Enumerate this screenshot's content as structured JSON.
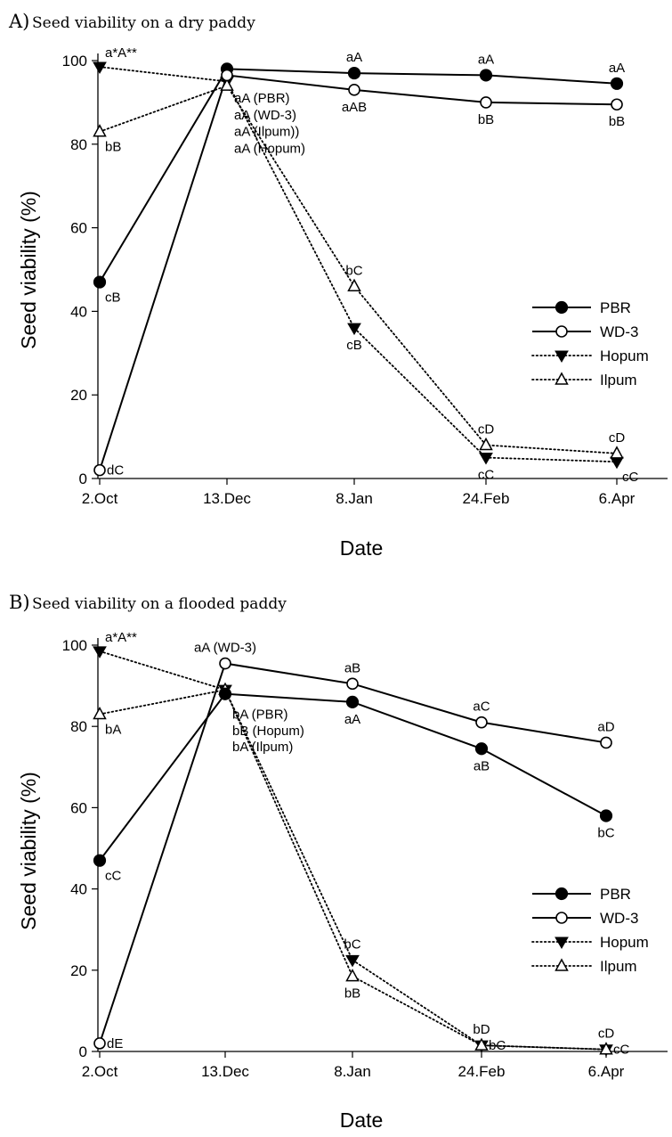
{
  "chart_data": [
    {
      "type": "line",
      "panel": "A)",
      "title": "Seed viability on a dry paddy",
      "xlabel": "Date",
      "ylabel": "Seed viability (%)",
      "categories": [
        "2.Oct",
        "13.Dec",
        "8.Jan",
        "24.Feb",
        "6.Apr"
      ],
      "ylim": [
        0,
        100
      ],
      "yticks": [
        0,
        20,
        40,
        60,
        80,
        100
      ],
      "legend_position": "center-right",
      "series": [
        {
          "name": "PBR",
          "marker": "filled-circle",
          "line": "solid",
          "values": [
            47,
            98,
            97,
            96.5,
            94.5
          ]
        },
        {
          "name": "WD-3",
          "marker": "open-circle",
          "line": "solid",
          "values": [
            2,
            96.5,
            93,
            90,
            89.5
          ]
        },
        {
          "name": "Hopum",
          "marker": "filled-triangle-down",
          "line": "dotted",
          "values": [
            98.5,
            95,
            36,
            5,
            4
          ]
        },
        {
          "name": "Ilpum",
          "marker": "open-triangle-up",
          "line": "dotted",
          "values": [
            83,
            94,
            46,
            8,
            6
          ]
        }
      ],
      "annotations": [
        {
          "text": "a*A**",
          "x": 0,
          "y": 98.5,
          "pos": "above-right"
        },
        {
          "text": "bB",
          "x": 0,
          "y": 83,
          "pos": "below-right"
        },
        {
          "text": "cB",
          "x": 0,
          "y": 47,
          "pos": "below-right"
        },
        {
          "text": "dC",
          "x": 0,
          "y": 2,
          "pos": "right"
        },
        {
          "text": "aA (PBR)",
          "x": 1,
          "y": 91,
          "pos": "right"
        },
        {
          "text": "aA (WD-3)",
          "x": 1,
          "y": 87,
          "pos": "right"
        },
        {
          "text": "aA (Ilpum))",
          "x": 1,
          "y": 83,
          "pos": "right"
        },
        {
          "text": "aA (Hopum)",
          "x": 1,
          "y": 79,
          "pos": "right"
        },
        {
          "text": "aA",
          "x": 2,
          "y": 97,
          "pos": "above"
        },
        {
          "text": "aAB",
          "x": 2,
          "y": 93,
          "pos": "below"
        },
        {
          "text": "bC",
          "x": 2,
          "y": 46,
          "pos": "above"
        },
        {
          "text": "cB",
          "x": 2,
          "y": 36,
          "pos": "below"
        },
        {
          "text": "aA",
          "x": 3,
          "y": 96.5,
          "pos": "above"
        },
        {
          "text": "bB",
          "x": 3,
          "y": 90,
          "pos": "below"
        },
        {
          "text": "cD",
          "x": 3,
          "y": 8,
          "pos": "above"
        },
        {
          "text": "cC",
          "x": 3,
          "y": 5,
          "pos": "below"
        },
        {
          "text": "aA",
          "x": 4,
          "y": 94.5,
          "pos": "above"
        },
        {
          "text": "bB",
          "x": 4,
          "y": 89.5,
          "pos": "below"
        },
        {
          "text": "cD",
          "x": 4,
          "y": 6,
          "pos": "above"
        },
        {
          "text": "cC",
          "x": 4,
          "y": 4,
          "pos": "below-right"
        }
      ]
    },
    {
      "type": "line",
      "panel": "B)",
      "title": "Seed viability on a flooded paddy",
      "xlabel": "Date",
      "ylabel": "Seed viability (%)",
      "categories": [
        "2.Oct",
        "13.Dec",
        "8.Jan",
        "24.Feb",
        "6.Apr"
      ],
      "ylim": [
        0,
        100
      ],
      "yticks": [
        0,
        20,
        40,
        60,
        80,
        100
      ],
      "legend_position": "lower-right",
      "series": [
        {
          "name": "PBR",
          "marker": "filled-circle",
          "line": "solid",
          "values": [
            47,
            88,
            86,
            74.5,
            58
          ]
        },
        {
          "name": "WD-3",
          "marker": "open-circle",
          "line": "solid",
          "values": [
            2,
            95.5,
            90.5,
            81,
            76
          ]
        },
        {
          "name": "Hopum",
          "marker": "filled-triangle-down",
          "line": "dotted",
          "values": [
            98.5,
            89,
            22.5,
            1.5,
            0.5
          ]
        },
        {
          "name": "Ilpum",
          "marker": "open-triangle-up",
          "line": "dotted",
          "values": [
            83,
            89,
            18.5,
            1.5,
            0.5
          ]
        }
      ],
      "annotations": [
        {
          "text": "a*A**",
          "x": 0,
          "y": 98.5,
          "pos": "above-right"
        },
        {
          "text": "bA",
          "x": 0,
          "y": 83,
          "pos": "below-right"
        },
        {
          "text": "cC",
          "x": 0,
          "y": 47,
          "pos": "below-right"
        },
        {
          "text": "dE",
          "x": 0,
          "y": 2,
          "pos": "right"
        },
        {
          "text": "aA (WD-3)",
          "x": 1,
          "y": 95.5,
          "pos": "above"
        },
        {
          "text": "bA (PBR)",
          "x": 1,
          "y": 83,
          "pos": "right"
        },
        {
          "text": "bB (Hopum)",
          "x": 1,
          "y": 79,
          "pos": "right"
        },
        {
          "text": "bA (Ilpum)",
          "x": 1,
          "y": 75,
          "pos": "right"
        },
        {
          "text": "aB",
          "x": 2,
          "y": 90.5,
          "pos": "above"
        },
        {
          "text": "aA",
          "x": 2,
          "y": 86,
          "pos": "below"
        },
        {
          "text": "bC",
          "x": 2,
          "y": 22.5,
          "pos": "above"
        },
        {
          "text": "bB",
          "x": 2,
          "y": 18.5,
          "pos": "below"
        },
        {
          "text": "aC",
          "x": 3,
          "y": 81,
          "pos": "above"
        },
        {
          "text": "aB",
          "x": 3,
          "y": 74.5,
          "pos": "below"
        },
        {
          "text": "bD",
          "x": 3,
          "y": 1.5,
          "pos": "above"
        },
        {
          "text": "bC",
          "x": 3,
          "y": 1.5,
          "pos": "right"
        },
        {
          "text": "aD",
          "x": 4,
          "y": 76,
          "pos": "above"
        },
        {
          "text": "bC",
          "x": 4,
          "y": 58,
          "pos": "below"
        },
        {
          "text": "cD",
          "x": 4,
          "y": 0.5,
          "pos": "above"
        },
        {
          "text": "cC",
          "x": 4,
          "y": 0.5,
          "pos": "right"
        }
      ]
    }
  ]
}
